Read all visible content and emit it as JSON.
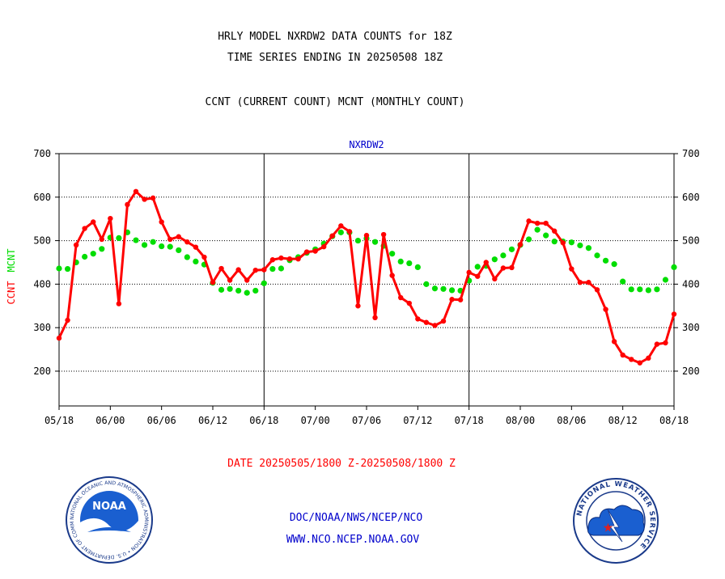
{
  "header": {
    "line1": "HRLY MODEL NXRDW2 DATA COUNTS for 18Z",
    "line2": "TIME SERIES ENDING IN 20250508 18Z",
    "line3": "CCNT (CURRENT COUNT) MCNT (MONTHLY COUNT)"
  },
  "footer": {
    "date_range": "DATE 20250505/1800 Z-20250508/1800 Z",
    "org": "DOC/NOAA/NWS/NCEP/NCO",
    "url": "WWW.NCO.NCEP.NOAA.GOV"
  },
  "logos": {
    "noaa_label": "NOAA",
    "noaa_ring_text": "NATIONAL OCEANIC AND ATMOSPHERIC ADMINISTRATION • U.S. DEPARTMENT OF COMMERCE •",
    "nws_ring_text": "NATIONAL WEATHER SERVICE"
  },
  "colors": {
    "ccnt": "#ff0000",
    "mcnt": "#00dd00",
    "title": "#0000cc"
  },
  "chart_data": {
    "type": "line",
    "title": "NXRDW2",
    "ylabel_ccnt": "CCNT",
    "ylabel_mcnt": "MCNT",
    "ylim": [
      120,
      700
    ],
    "yticks": [
      200,
      300,
      400,
      500,
      600,
      700
    ],
    "xlim": [
      0,
      72
    ],
    "xticks": [
      0,
      6,
      12,
      18,
      24,
      30,
      36,
      42,
      48,
      54,
      60,
      66,
      72
    ],
    "xticklabels": [
      "05/18",
      "06/00",
      "06/06",
      "06/12",
      "06/18",
      "07/00",
      "07/06",
      "07/12",
      "07/18",
      "08/00",
      "08/06",
      "08/12",
      "08/18"
    ],
    "day_dividers": [
      24,
      48
    ],
    "grid": "horizontal dotted",
    "series": [
      {
        "name": "CCNT",
        "values": [
          276,
          317,
          490,
          528,
          543,
          503,
          551,
          355,
          583,
          613,
          595,
          598,
          543,
          503,
          509,
          497,
          485,
          462,
          404,
          436,
          409,
          433,
          409,
          432,
          433,
          456,
          460,
          458,
          458,
          474,
          476,
          486,
          511,
          534,
          521,
          350,
          512,
          323,
          514,
          420,
          369,
          356,
          320,
          312,
          305,
          315,
          365,
          364,
          427,
          418,
          450,
          412,
          437,
          438,
          491,
          545,
          540,
          540,
          522,
          495,
          435,
          404,
          404,
          387,
          342,
          268,
          237,
          227,
          219,
          230,
          262,
          265,
          331
        ]
      },
      {
        "name": "MCNT",
        "values": [
          436,
          435,
          450,
          463,
          470,
          481,
          507,
          506,
          519,
          501,
          490,
          497,
          487,
          486,
          478,
          462,
          452,
          445,
          403,
          387,
          389,
          385,
          380,
          385,
          402,
          435,
          436,
          455,
          462,
          472,
          480,
          493,
          510,
          519,
          519,
          500,
          505,
          497,
          488,
          470,
          452,
          448,
          439,
          400,
          390,
          389,
          386,
          385,
          408,
          440,
          442,
          457,
          466,
          480,
          490,
          503,
          525,
          512,
          498,
          498,
          496,
          489,
          483,
          466,
          454,
          446,
          406,
          388,
          388,
          386,
          388,
          410,
          439
        ]
      }
    ]
  }
}
